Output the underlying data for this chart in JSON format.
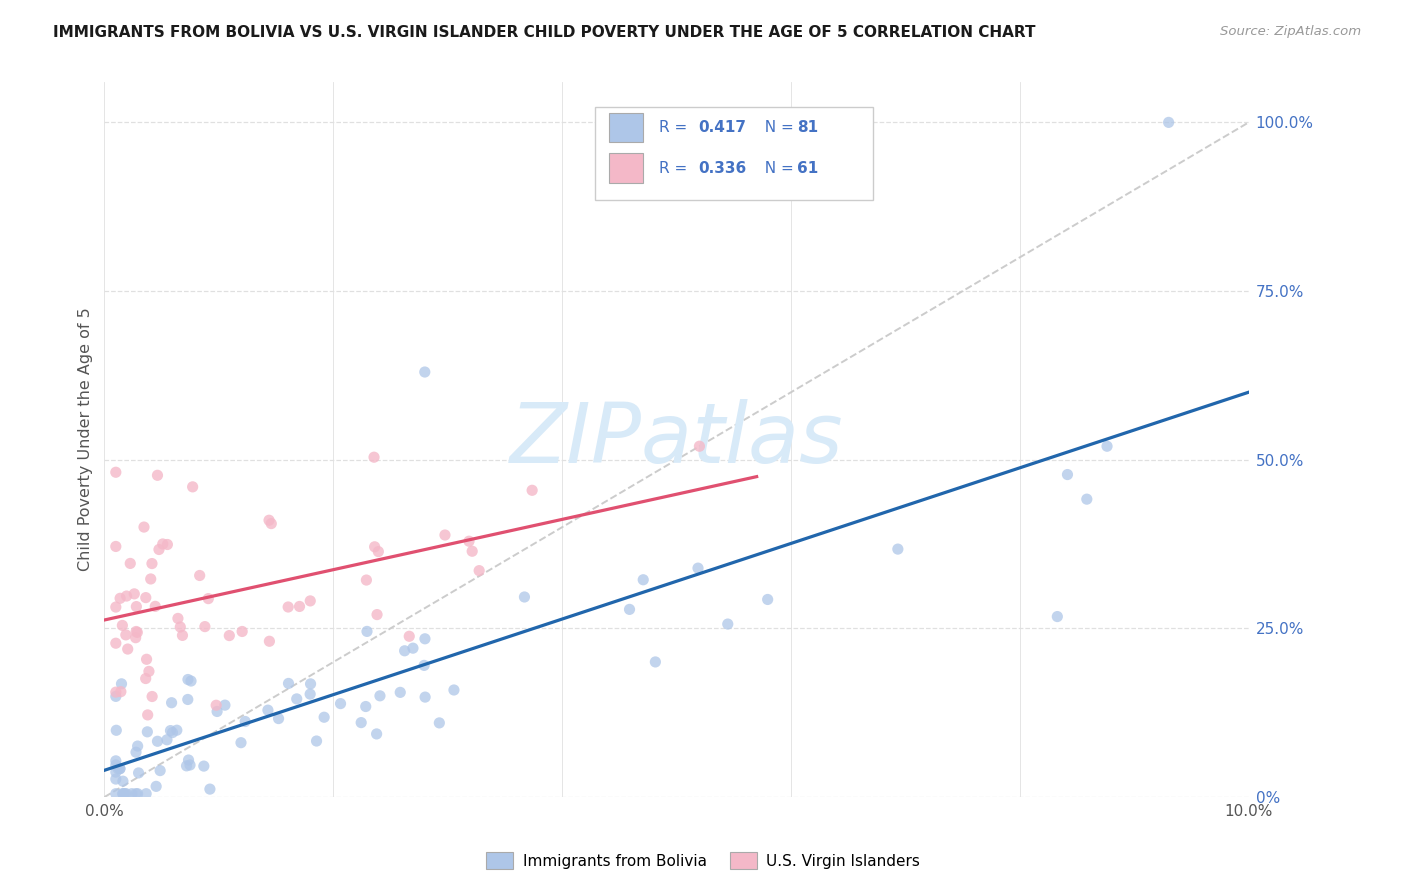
{
  "title": "IMMIGRANTS FROM BOLIVIA VS U.S. VIRGIN ISLANDER CHILD POVERTY UNDER THE AGE OF 5 CORRELATION CHART",
  "source": "Source: ZipAtlas.com",
  "ylabel": "Child Poverty Under the Age of 5",
  "x_min": 0.0,
  "x_max": 0.1,
  "y_min": 0.0,
  "y_max": 1.06,
  "x_tick_positions": [
    0.0,
    0.02,
    0.04,
    0.06,
    0.08,
    0.1
  ],
  "x_tick_labels": [
    "0.0%",
    "",
    "",
    "",
    "",
    "10.0%"
  ],
  "y_ticks_right": [
    0.0,
    0.25,
    0.5,
    0.75,
    1.0
  ],
  "y_tick_labels_right": [
    "0%",
    "25.0%",
    "50.0%",
    "75.0%",
    "100.0%"
  ],
  "R_blue": 0.417,
  "N_blue": 81,
  "R_pink": 0.336,
  "N_pink": 61,
  "blue_scatter_color": "#aec6e8",
  "pink_scatter_color": "#f4b8c8",
  "blue_line_color": "#2166ac",
  "pink_line_color": "#e05070",
  "diag_line_color": "#cccccc",
  "legend_label_blue": "Immigrants from Bolivia",
  "legend_label_pink": "U.S. Virgin Islanders",
  "r_n_color": "#4472c4",
  "watermark_color": "#d8eaf8",
  "title_color": "#1a1a1a",
  "source_color": "#999999",
  "axis_label_color": "#555555",
  "right_axis_color": "#4472c4",
  "grid_color": "#e0e0e0",
  "blue_line_intercept": 0.05,
  "blue_line_slope": 4.5,
  "pink_line_intercept": 0.24,
  "pink_line_slope": 4.0
}
